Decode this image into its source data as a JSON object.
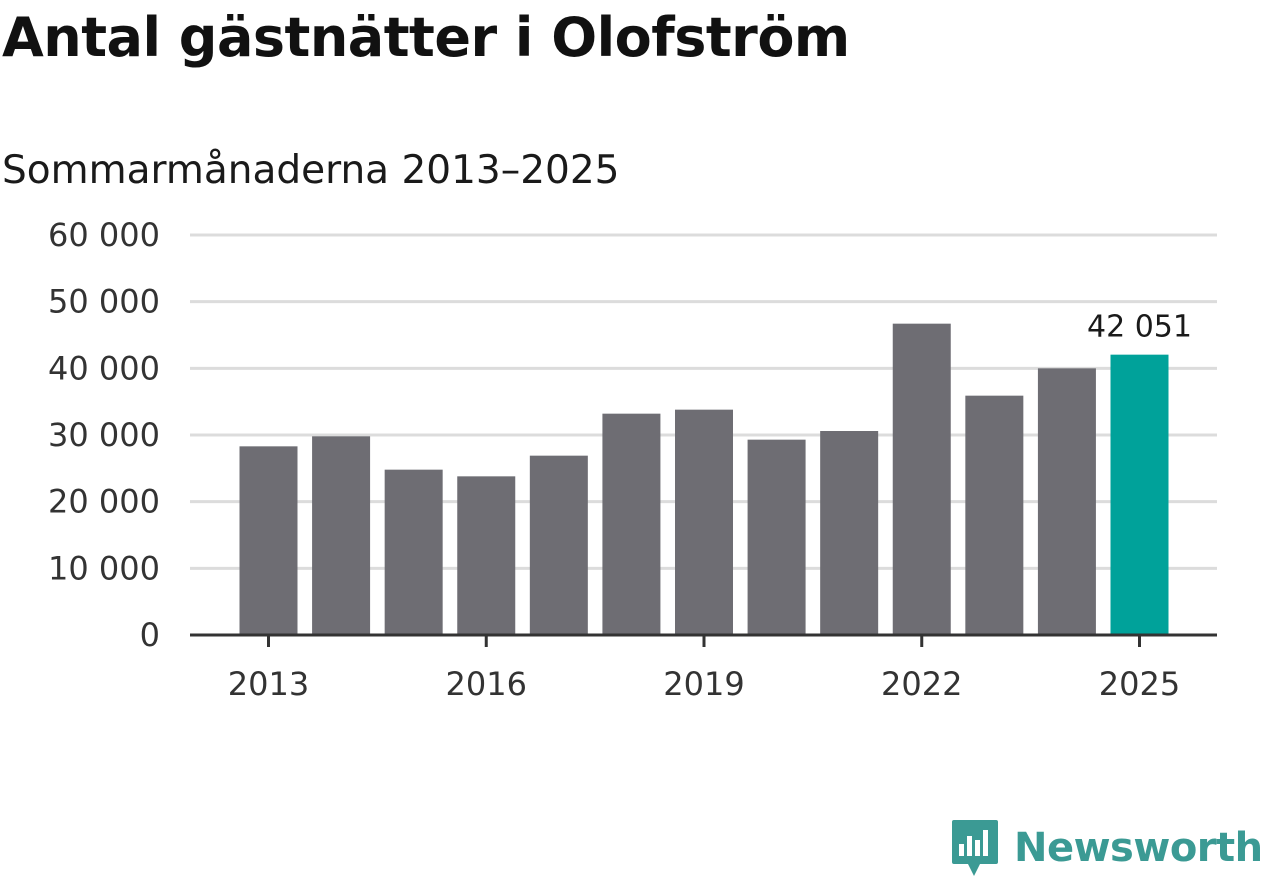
{
  "title": "Antal gästnätter i Olofström",
  "subtitle": "Sommarmånaderna 2013–2025",
  "brand": {
    "name": "Newsworthy",
    "icon": "newsworthy-logo-icon"
  },
  "colors": {
    "bar": "#6e6d73",
    "highlight": "#00a29a",
    "grid": "#dcdcdc",
    "axis": "#333333",
    "brand": "#3b9a94"
  },
  "chart_data": {
    "type": "bar",
    "categories": [
      "2013",
      "2014",
      "2015",
      "2016",
      "2017",
      "2018",
      "2019",
      "2020",
      "2021",
      "2022",
      "2023",
      "2024",
      "2025"
    ],
    "values": [
      28300,
      29800,
      24800,
      23800,
      26900,
      33200,
      33800,
      29300,
      30600,
      46700,
      35900,
      40000,
      42051
    ],
    "highlight_index": 12,
    "x_tick_labels": [
      "2013",
      "2016",
      "2019",
      "2022",
      "2025"
    ],
    "y_ticks": [
      0,
      10000,
      20000,
      30000,
      40000,
      50000,
      60000
    ],
    "y_tick_labels": [
      "0",
      "10 000",
      "20 000",
      "30 000",
      "40 000",
      "50 000",
      "60 000"
    ],
    "ylim": [
      0,
      60000
    ],
    "data_labels": [
      {
        "index": 12,
        "text": "42 051"
      }
    ],
    "grid": true,
    "legend": "none",
    "xlabel": "",
    "ylabel": ""
  }
}
